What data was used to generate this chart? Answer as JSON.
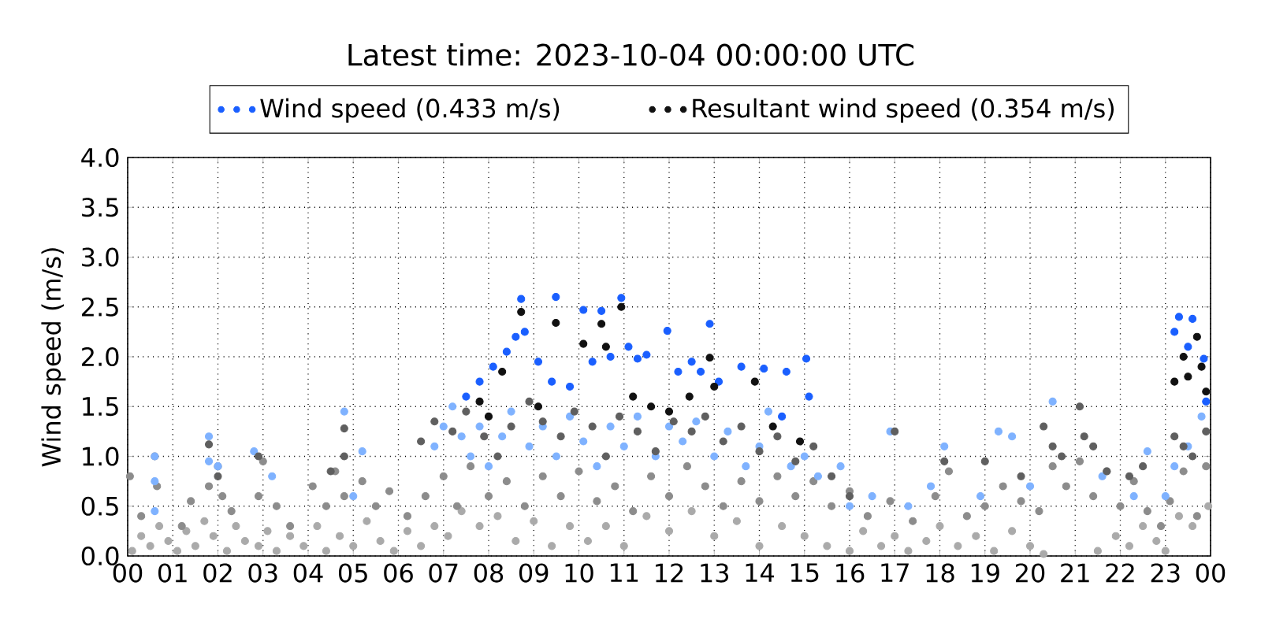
{
  "chart_data": {
    "type": "scatter",
    "title": "Latest time: 2023-10-04 00:00:00 UTC",
    "ylabel": "Wind speed (m/s)",
    "xlim": [
      0,
      24
    ],
    "ylim": [
      0,
      4
    ],
    "xticks": [
      {
        "value": 0,
        "label": "00"
      },
      {
        "value": 1,
        "label": "01"
      },
      {
        "value": 2,
        "label": "02"
      },
      {
        "value": 3,
        "label": "03"
      },
      {
        "value": 4,
        "label": "04"
      },
      {
        "value": 5,
        "label": "05"
      },
      {
        "value": 6,
        "label": "06"
      },
      {
        "value": 7,
        "label": "07"
      },
      {
        "value": 8,
        "label": "08"
      },
      {
        "value": 9,
        "label": "09"
      },
      {
        "value": 10,
        "label": "10"
      },
      {
        "value": 11,
        "label": "11"
      },
      {
        "value": 12,
        "label": "12"
      },
      {
        "value": 13,
        "label": "13"
      },
      {
        "value": 14,
        "label": "14"
      },
      {
        "value": 15,
        "label": "15"
      },
      {
        "value": 16,
        "label": "16"
      },
      {
        "value": 17,
        "label": "17"
      },
      {
        "value": 18,
        "label": "18"
      },
      {
        "value": 19,
        "label": "19"
      },
      {
        "value": 20,
        "label": "20"
      },
      {
        "value": 21,
        "label": "21"
      },
      {
        "value": 22,
        "label": "22"
      },
      {
        "value": 23,
        "label": "23"
      },
      {
        "value": 24,
        "label": "00"
      }
    ],
    "yticks": [
      {
        "value": 0,
        "label": "0.0"
      },
      {
        "value": 0.5,
        "label": "0.5"
      },
      {
        "value": 1,
        "label": "1.0"
      },
      {
        "value": 1.5,
        "label": "1.5"
      },
      {
        "value": 2,
        "label": "2.0"
      },
      {
        "value": 2.5,
        "label": "2.5"
      },
      {
        "value": 3,
        "label": "3.0"
      },
      {
        "value": 3.5,
        "label": "3.5"
      },
      {
        "value": 4,
        "label": "4.0"
      }
    ],
    "grid": true,
    "legend": "top",
    "marker": "circle",
    "series": [
      {
        "color": "#aaaaaa",
        "x": [
          0.1,
          0.3,
          0.5,
          0.7,
          0.9,
          1.1,
          1.3,
          1.5,
          1.7,
          1.9,
          2.2,
          2.4,
          2.6,
          2.9,
          3.1,
          3.3,
          3.6,
          3.9,
          4.2,
          4.4,
          4.7,
          5.0,
          5.3,
          5.6,
          5.9,
          6.2,
          6.5,
          6.8,
          7.1,
          7.4,
          7.8,
          8.2,
          8.6,
          9.0,
          9.4,
          9.8,
          10.2,
          10.6,
          11.0,
          11.5,
          12.0,
          12.5,
          13.0,
          13.5,
          14.0,
          14.5,
          15.0,
          15.5,
          16.0,
          16.3,
          16.7,
          17.0,
          17.3,
          17.7,
          18.0,
          18.4,
          18.8,
          19.2,
          19.6,
          20.0,
          20.3,
          21.5,
          21.9,
          22.2,
          22.5,
          22.8,
          23.0,
          23.3,
          23.6,
          23.95
        ],
        "values": [
          0.05,
          0.2,
          0.1,
          0.3,
          0.15,
          0.05,
          0.25,
          0.1,
          0.35,
          0.2,
          0.05,
          0.3,
          0.15,
          0.1,
          0.25,
          0.05,
          0.2,
          0.1,
          0.3,
          0.05,
          0.2,
          0.1,
          0.35,
          0.15,
          0.05,
          0.25,
          0.1,
          0.3,
          0.2,
          0.45,
          0.3,
          0.4,
          0.15,
          0.35,
          0.1,
          0.3,
          0.15,
          0.3,
          0.1,
          0.4,
          0.25,
          0.45,
          0.2,
          0.35,
          0.1,
          0.3,
          0.2,
          0.1,
          0.05,
          0.25,
          0.1,
          0.2,
          0.05,
          0.15,
          0.3,
          0.1,
          0.2,
          0.05,
          0.25,
          0.1,
          0.02,
          0.05,
          0.2,
          0.1,
          0.3,
          0.15,
          0.05,
          0.4,
          0.3,
          0.5
        ]
      },
      {
        "color": "#8c8c8c",
        "x": [
          0.05,
          0.3,
          0.65,
          0.6,
          1.2,
          1.4,
          1.8,
          2.0,
          2.1,
          2.3,
          2.9,
          3.0,
          3.3,
          3.6,
          4.1,
          4.4,
          4.6,
          4.8,
          5.2,
          5.5,
          5.8,
          6.2,
          6.6,
          7.0,
          7.3,
          7.6,
          8.0,
          8.4,
          8.8,
          9.2,
          9.6,
          10.0,
          10.4,
          10.8,
          11.2,
          11.6,
          12.0,
          12.4,
          12.8,
          13.2,
          13.6,
          14.0,
          14.4,
          14.8,
          15.2,
          15.6,
          16.0,
          16.4,
          16.9,
          17.4,
          17.9,
          18.2,
          18.6,
          19.0,
          19.4,
          19.8,
          20.2,
          20.5,
          20.8,
          21.1,
          21.4,
          21.7,
          22.0,
          22.3,
          22.6,
          22.9,
          23.1,
          23.4,
          23.7,
          23.9
        ],
        "values": [
          0.8,
          0.4,
          0.7,
          1.0,
          0.3,
          0.55,
          0.7,
          0.9,
          0.6,
          0.45,
          0.6,
          0.95,
          0.5,
          0.3,
          0.7,
          0.5,
          0.85,
          0.6,
          0.75,
          0.5,
          0.65,
          0.4,
          0.6,
          0.8,
          0.5,
          0.9,
          0.6,
          0.75,
          0.5,
          0.8,
          0.6,
          0.85,
          0.55,
          0.7,
          0.45,
          0.8,
          0.6,
          0.9,
          0.7,
          0.5,
          0.75,
          0.55,
          0.8,
          0.6,
          0.75,
          0.5,
          0.65,
          0.4,
          0.55,
          0.35,
          0.6,
          0.85,
          0.4,
          0.5,
          0.7,
          0.55,
          0.45,
          0.9,
          0.7,
          0.95,
          0.6,
          0.85,
          0.5,
          0.75,
          0.45,
          0.3,
          0.55,
          0.85,
          0.4,
          0.9
        ]
      },
      {
        "color": "#7fb2ff",
        "x": [
          0.6,
          0.6,
          0.6,
          1.8,
          1.8,
          2.0,
          2.8,
          3.2,
          4.8,
          5.2,
          5.0,
          6.8,
          7.0,
          7.2,
          7.4,
          7.6,
          7.8,
          8.0,
          8.3,
          8.5,
          8.9,
          9.2,
          9.5,
          9.8,
          10.1,
          10.4,
          10.7,
          11.0,
          11.3,
          11.7,
          12.0,
          12.3,
          12.6,
          13.0,
          13.3,
          13.7,
          14.0,
          14.2,
          14.7,
          15.0,
          15.3,
          15.8,
          16.0,
          16.5,
          16.9,
          17.3,
          17.8,
          18.1,
          18.9,
          19.3,
          19.6,
          20.0,
          20.5,
          21.6,
          22.3,
          22.6,
          23.0,
          23.2,
          23.5,
          23.8
        ],
        "values": [
          1.0,
          0.75,
          0.45,
          1.2,
          0.95,
          0.9,
          1.05,
          0.8,
          1.45,
          1.05,
          0.6,
          1.1,
          1.3,
          1.5,
          1.2,
          1.0,
          1.3,
          0.9,
          1.2,
          1.45,
          1.1,
          1.3,
          1.0,
          1.4,
          1.15,
          0.9,
          1.3,
          1.1,
          1.4,
          1.0,
          1.3,
          1.15,
          1.35,
          1.0,
          1.25,
          0.9,
          1.1,
          1.45,
          0.9,
          1.0,
          0.8,
          0.9,
          0.5,
          0.6,
          1.25,
          0.5,
          0.7,
          1.1,
          0.6,
          1.25,
          1.2,
          0.7,
          1.55,
          0.8,
          0.6,
          1.05,
          0.6,
          0.9,
          1.1,
          1.4
        ]
      },
      {
        "color": "#5f5f5f",
        "x": [
          1.8,
          2.0,
          2.9,
          4.8,
          4.8,
          4.5,
          6.5,
          6.8,
          7.2,
          7.5,
          7.9,
          8.2,
          8.5,
          8.9,
          9.2,
          9.6,
          9.9,
          10.3,
          10.6,
          10.9,
          11.3,
          11.7,
          12.1,
          12.5,
          12.8,
          13.2,
          13.6,
          14.0,
          14.4,
          14.8,
          15.2,
          15.6,
          16.0,
          17.0,
          18.1,
          19.0,
          19.8,
          20.3,
          20.5,
          20.7,
          21.1,
          21.2,
          21.4,
          21.7,
          22.2,
          22.5,
          23.2,
          23.4,
          23.6,
          23.9
        ],
        "values": [
          1.12,
          0.8,
          1.0,
          1.28,
          1.0,
          0.85,
          1.15,
          1.35,
          1.25,
          1.45,
          1.2,
          1.0,
          1.3,
          1.55,
          1.35,
          1.2,
          1.45,
          1.3,
          1.0,
          1.4,
          1.25,
          1.05,
          1.35,
          1.25,
          1.4,
          1.15,
          1.3,
          1.05,
          1.2,
          0.95,
          1.1,
          0.8,
          0.6,
          1.25,
          0.95,
          0.95,
          0.8,
          1.3,
          1.1,
          1.0,
          1.5,
          1.2,
          1.1,
          0.85,
          0.8,
          0.9,
          1.2,
          1.1,
          1.0,
          1.25
        ]
      },
      {
        "name": "Wind speed (0.433 m/s)",
        "color": "#1a5fff",
        "x": [
          7.5,
          7.8,
          8.1,
          8.4,
          8.6,
          8.72,
          8.8,
          9.1,
          9.4,
          9.49,
          9.8,
          10.1,
          10.3,
          10.5,
          10.7,
          10.94,
          11.1,
          11.3,
          11.5,
          11.96,
          12.2,
          12.5,
          12.7,
          12.9,
          13.1,
          13.6,
          14.1,
          14.5,
          14.6,
          15.04,
          15.1,
          23.2,
          23.3,
          23.5,
          23.6,
          23.85,
          23.9
        ],
        "values": [
          1.6,
          1.75,
          1.9,
          2.05,
          2.2,
          2.58,
          2.25,
          1.95,
          1.75,
          2.6,
          1.7,
          2.47,
          1.95,
          2.46,
          2.0,
          2.59,
          2.1,
          1.98,
          2.02,
          2.26,
          1.85,
          1.95,
          1.85,
          2.33,
          1.75,
          1.9,
          1.88,
          1.4,
          1.85,
          1.98,
          1.6,
          2.25,
          2.4,
          2.1,
          2.38,
          1.98,
          1.55
        ]
      },
      {
        "name": "Resultant wind speed (0.354 m/s)",
        "color": "#111111",
        "x": [
          7.8,
          8.0,
          8.3,
          8.72,
          9.1,
          9.49,
          10.1,
          10.5,
          10.6,
          10.94,
          11.2,
          11.6,
          12.0,
          12.45,
          12.9,
          13.0,
          13.9,
          14.3,
          14.9,
          23.2,
          23.4,
          23.5,
          23.7,
          23.8,
          23.9
        ],
        "values": [
          1.55,
          1.4,
          1.85,
          2.45,
          1.5,
          2.34,
          2.13,
          2.33,
          2.1,
          2.5,
          1.6,
          1.5,
          1.45,
          1.6,
          1.99,
          1.7,
          1.75,
          1.3,
          1.15,
          1.75,
          2.0,
          1.8,
          2.2,
          1.9,
          1.65
        ]
      }
    ]
  }
}
